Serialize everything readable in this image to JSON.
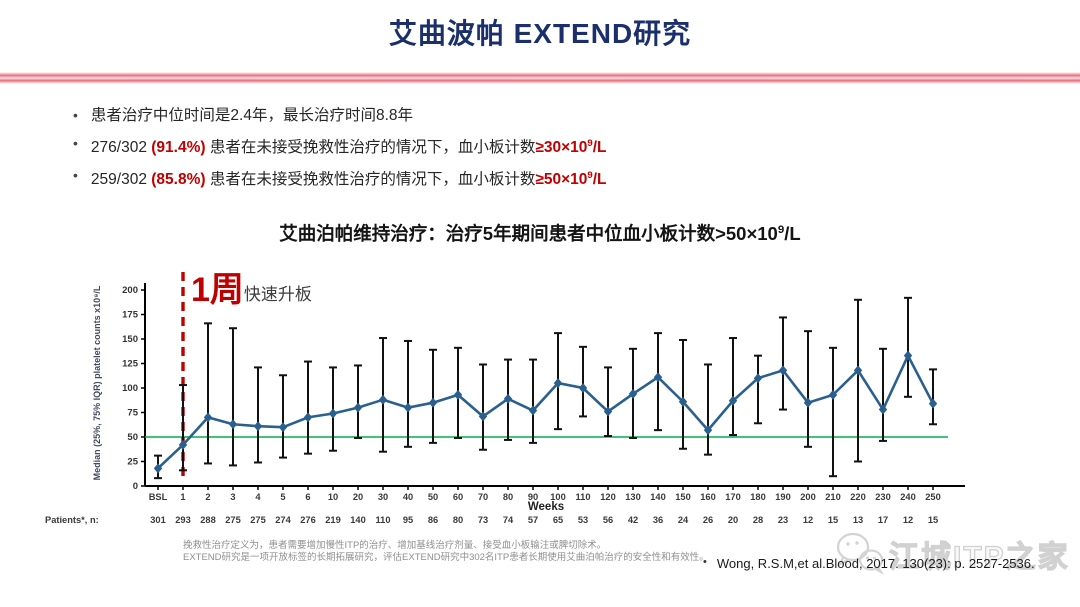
{
  "slide": {
    "title": "艾曲波帕 EXTEND研究",
    "bullet_marker": "•",
    "bullets": {
      "b1": {
        "text": "患者治疗中位时间是2.4年，最长治疗时间8.8年"
      },
      "b2": {
        "t1": "276/302 ",
        "pct": "(91.4%)",
        "t2": " 患者在未接受挽救性治疗的情况下，血小板计数",
        "thresh": "≥30×10",
        "sup": "9",
        "unit": "/L"
      },
      "b3": {
        "t1": "259/302 ",
        "pct": "(85.8%)",
        "t2": " 患者在未接受挽救性治疗的情况下，血小板计数",
        "thresh": "≥50×10",
        "sup": "9",
        "unit": "/L"
      }
    },
    "subtitle": {
      "pre": "艾曲泊帕维持治疗：治疗5年期间患者中位血小板计数>50×10",
      "sup": "9",
      "post": "/L"
    },
    "annotation": {
      "big": "1周",
      "small": "快速升板"
    },
    "footnotes": {
      "line1": "挽救性治疗定义为，患者需要增加慢性ITP的治疗、增加基线治疗剂量、接受血小板输注或脾切除术。",
      "line2": "EXTEND研究是一项开放标签的长期拓展研究，评估EXTEND研究中302名ITP患者长期使用艾曲泊帕治疗的安全性和有效性。"
    },
    "citation": {
      "marker": "•",
      "text": "Wong, R.S.M,et al.Blood, 2017. 130(23): p. 2527-2536."
    },
    "watermark": {
      "text": "江城ITP之家"
    }
  },
  "chart_data": {
    "type": "line",
    "title": "艾曲泊帕维持治疗：治疗5年期间患者中位血小板计数>50×10⁹/L",
    "xlabel": "Weeks",
    "ylabel": "Median (25%, 75% IQR) platelet counts x10⁹/L",
    "ylim": [
      0,
      200
    ],
    "yticks": [
      0,
      25,
      50,
      75,
      100,
      125,
      150,
      175,
      200
    ],
    "grid": false,
    "legend": "none",
    "categories": [
      "BSL",
      "1",
      "2",
      "3",
      "4",
      "5",
      "6",
      "10",
      "20",
      "30",
      "40",
      "50",
      "60",
      "70",
      "80",
      "90",
      "100",
      "110",
      "120",
      "130",
      "140",
      "150",
      "160",
      "170",
      "180",
      "190",
      "200",
      "210",
      "220",
      "230",
      "240",
      "250"
    ],
    "series": [
      {
        "name": "Median platelet count (25%, 75% IQR)",
        "values": [
          18,
          42,
          70,
          63,
          61,
          60,
          70,
          74,
          80,
          88,
          80,
          85,
          93,
          71,
          89,
          77,
          105,
          100,
          76,
          94,
          111,
          86,
          57,
          87,
          110,
          118,
          85,
          93,
          118,
          78,
          133,
          84
        ],
        "q25": [
          8,
          16,
          23,
          21,
          24,
          29,
          33,
          36,
          49,
          35,
          40,
          44,
          49,
          37,
          47,
          44,
          58,
          71,
          51,
          49,
          57,
          38,
          32,
          52,
          64,
          78,
          40,
          10,
          25,
          46,
          91,
          63
        ],
        "q75": [
          31,
          103,
          166,
          161,
          121,
          113,
          127,
          121,
          123,
          151,
          148,
          139,
          141,
          124,
          129,
          129,
          156,
          142,
          121,
          140,
          156,
          149,
          124,
          151,
          133,
          172,
          158,
          141,
          190,
          140,
          192,
          119
        ]
      }
    ],
    "patients_label": "Patients*, n:",
    "patients_n": [
      301,
      293,
      288,
      275,
      275,
      274,
      276,
      219,
      140,
      110,
      95,
      86,
      80,
      73,
      74,
      57,
      65,
      53,
      56,
      42,
      36,
      24,
      26,
      20,
      28,
      23,
      12,
      15,
      13,
      17,
      12,
      15
    ],
    "reference_line": {
      "y": 50,
      "color": "#00b050"
    },
    "annotation_line": {
      "x_category": "1",
      "color": "#c00000",
      "style": "dashed"
    },
    "colors": {
      "line": "#2b608e",
      "error_bar": "#111111",
      "axis": "#000000"
    }
  }
}
